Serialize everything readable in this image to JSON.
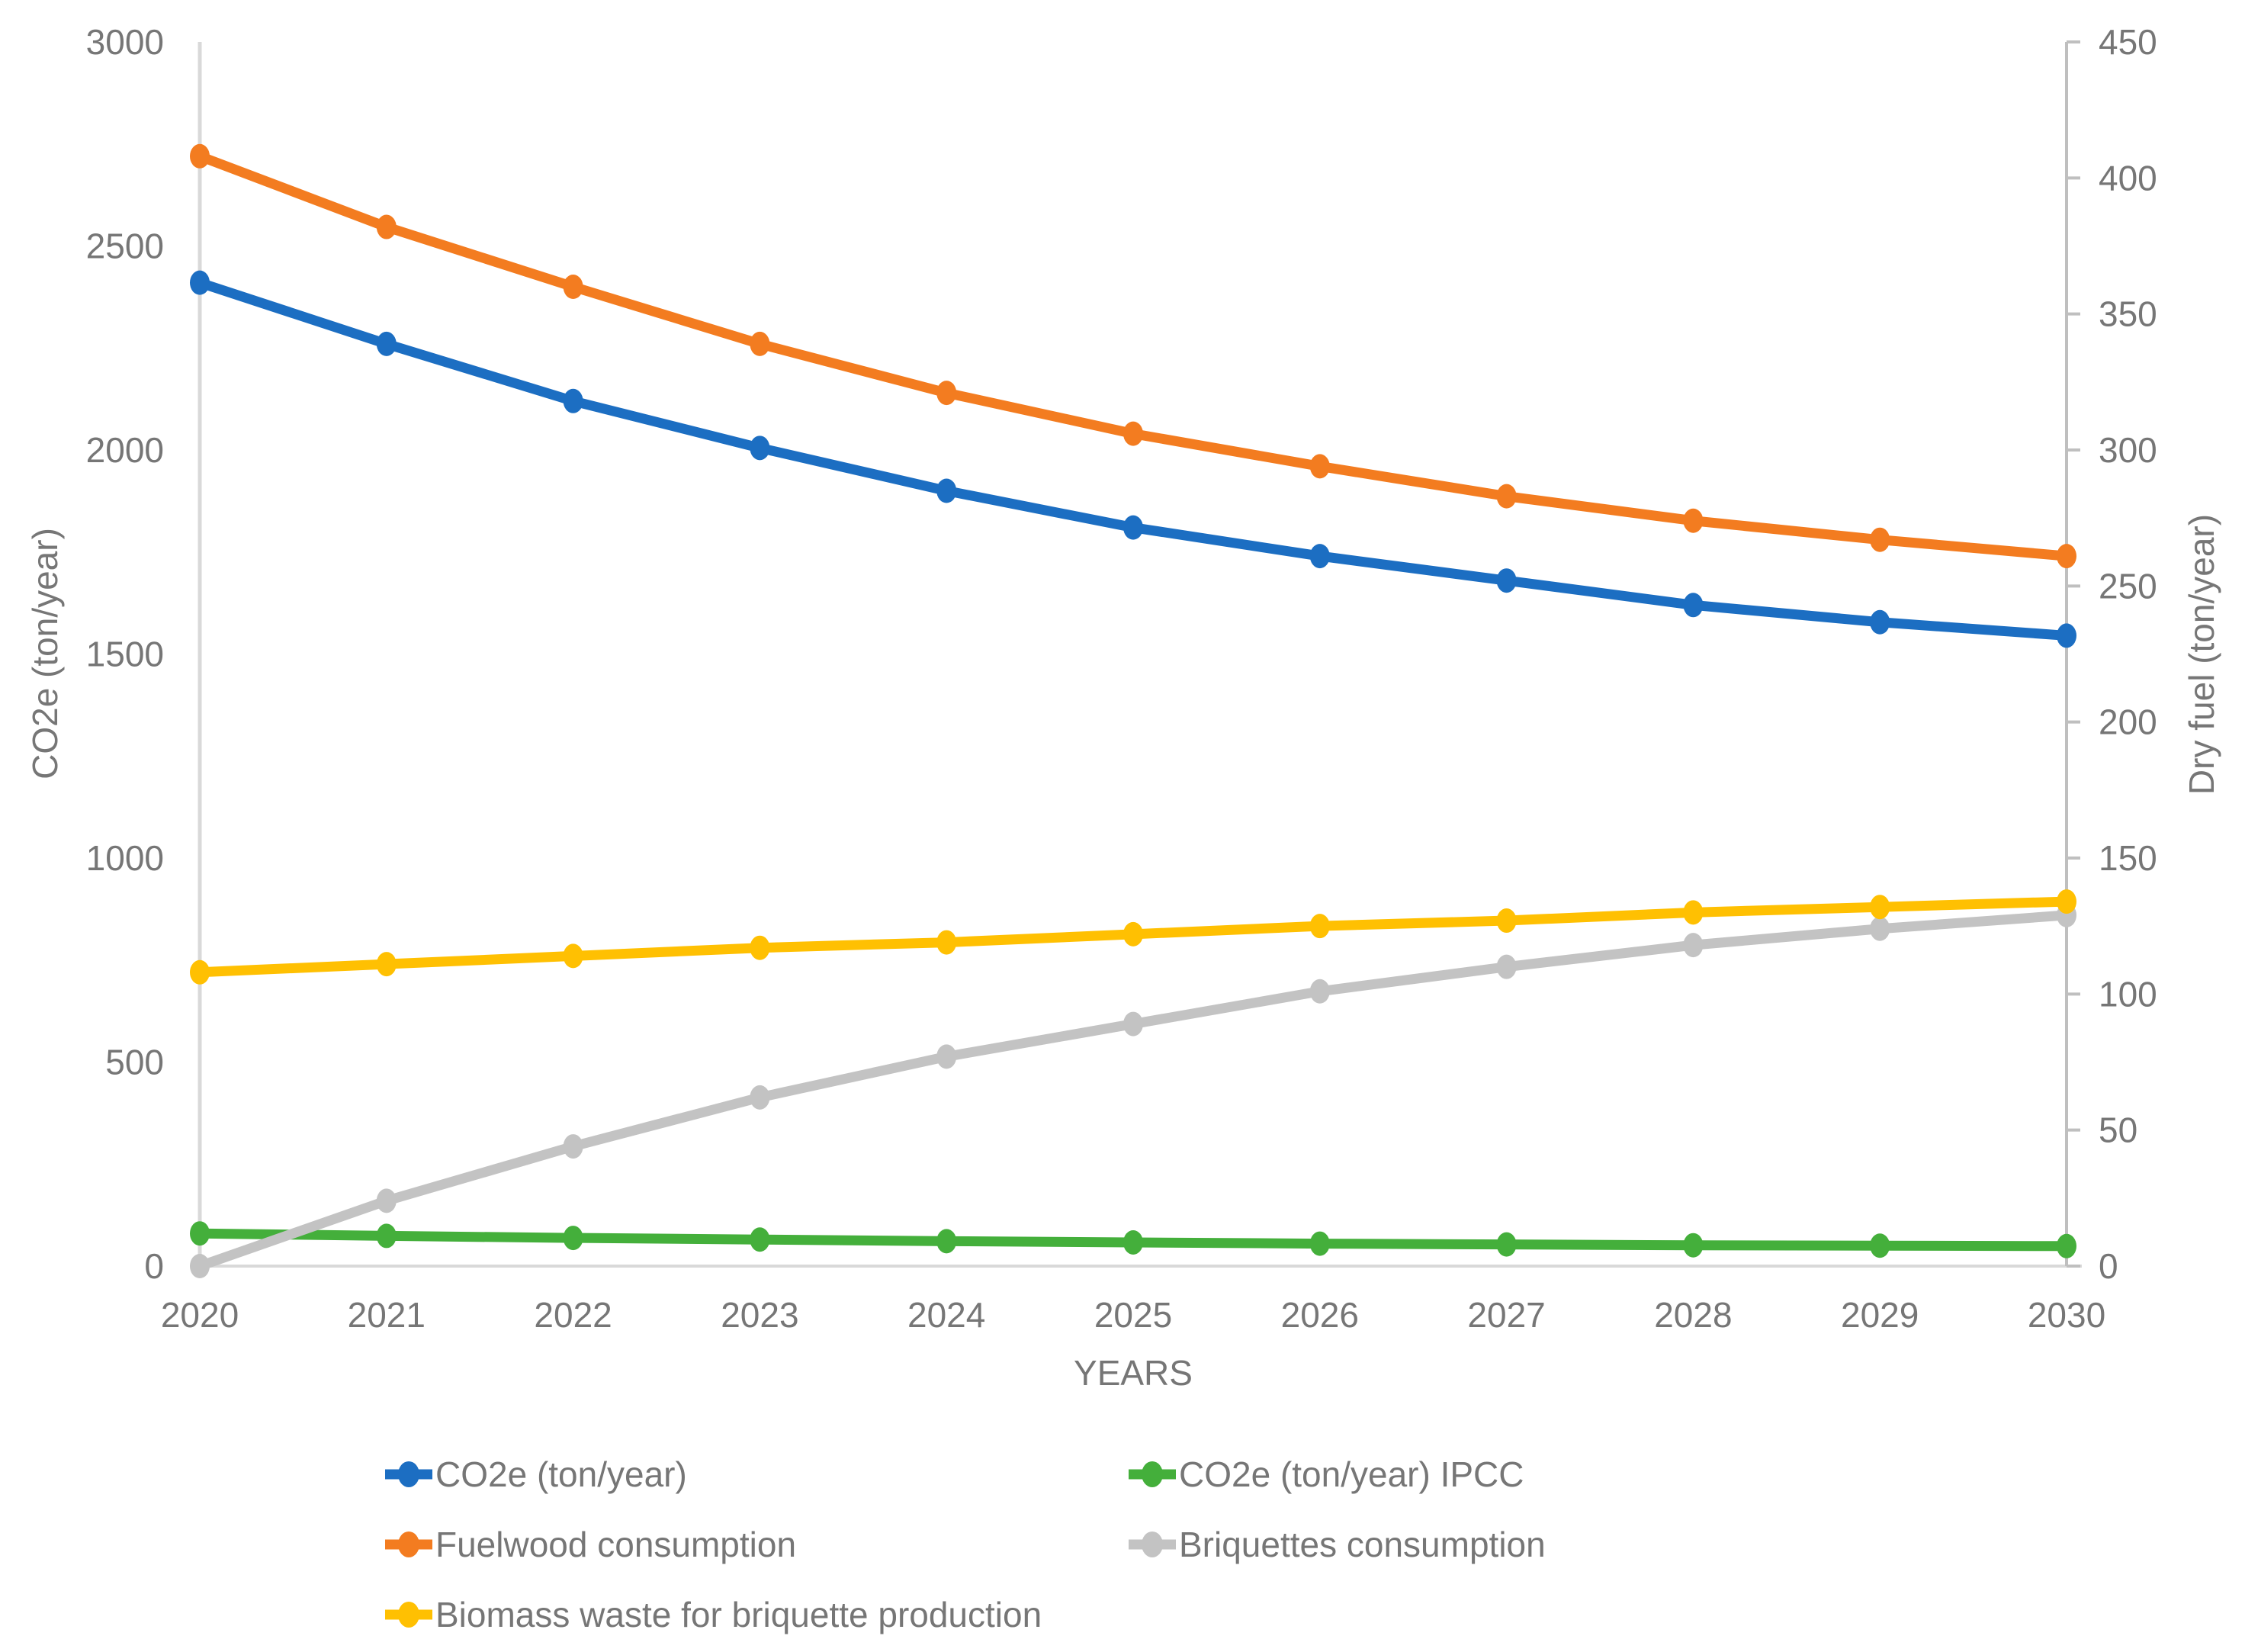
{
  "chart_data": {
    "type": "line",
    "title": "",
    "xlabel": "YEARS",
    "x_categories": [
      "2020",
      "2021",
      "2022",
      "2023",
      "2024",
      "2025",
      "2026",
      "2027",
      "2028",
      "2029",
      "2030"
    ],
    "left_axis": {
      "label": "CO2e (ton/year)",
      "min": 0,
      "max": 3000,
      "step": 500,
      "ticks": [
        "0",
        "500",
        "1000",
        "1500",
        "2000",
        "2500",
        "3000"
      ]
    },
    "right_axis": {
      "label": "Dry fuel (ton/year)",
      "min": 0,
      "max": 450,
      "step": 50,
      "ticks": [
        "0",
        "50",
        "100",
        "150",
        "200",
        "250",
        "300",
        "350",
        "400",
        "450"
      ]
    },
    "grid": "off",
    "legend_position": "bottom",
    "series": [
      {
        "name": "CO2e (ton/year)",
        "axis": "left",
        "color": "#1c6ec2",
        "marker": "circle",
        "values": [
          2410,
          2260,
          2120,
          2005,
          1900,
          1810,
          1740,
          1680,
          1620,
          1578,
          1545
        ]
      },
      {
        "name": "CO2e (ton/year) IPCC",
        "axis": "left",
        "color": "#44af3b",
        "marker": "circle",
        "values": [
          80,
          74,
          69,
          65,
          61,
          58,
          55,
          53,
          51,
          50,
          49
        ]
      },
      {
        "name": "Fuelwood consumption",
        "axis": "right",
        "color": "#f37c20",
        "marker": "circle",
        "values": [
          408,
          382,
          360,
          339,
          321,
          306,
          294,
          283,
          274,
          267,
          261
        ]
      },
      {
        "name": "Briquettes consumption",
        "axis": "right",
        "color": "#c3c3c3",
        "marker": "circle",
        "values": [
          0,
          24,
          44,
          62,
          77,
          89,
          101,
          110,
          118,
          124,
          129
        ]
      },
      {
        "name": "Biomass waste for briquette production",
        "axis": "right",
        "color": "#ffc002",
        "marker": "circle",
        "values": [
          108,
          111,
          114,
          117,
          119,
          122,
          125,
          127,
          130,
          132,
          134
        ]
      }
    ]
  },
  "colors": {
    "background": "#ffffff",
    "axis_line": "#d9d9d9",
    "right_axis_line": "#bfbfbf",
    "text": "#767676"
  }
}
